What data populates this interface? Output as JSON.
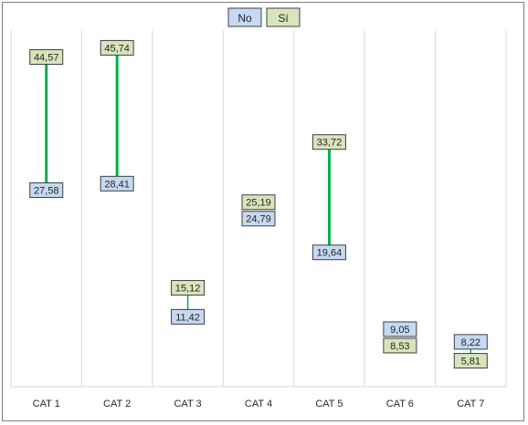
{
  "chart_data": {
    "type": "dumbbell",
    "categories": [
      "CAT 1",
      "CAT 2",
      "CAT 3",
      "CAT 4",
      "CAT 5",
      "CAT 6",
      "CAT 7"
    ],
    "series": [
      {
        "name": "No",
        "values": [
          27.58,
          28.41,
          11.42,
          24.79,
          19.64,
          9.05,
          8.22
        ],
        "labels": [
          "27,58",
          "28,41",
          "11,42",
          "24,79",
          "19,64",
          "9,05",
          "8,22"
        ]
      },
      {
        "name": "Sí",
        "values": [
          44.57,
          45.74,
          15.12,
          25.19,
          33.72,
          8.53,
          5.81
        ],
        "labels": [
          "44,57",
          "45,74",
          "15,12",
          "25,19",
          "33,72",
          "8,53",
          "5,81"
        ]
      }
    ],
    "ylim": [
      2.5,
      48
    ],
    "grid": "vertical",
    "legend_position": "top-center",
    "colors": {
      "no_fill": "#c5d9f1",
      "si_fill": "#d8e4bc",
      "connector": "#00b050",
      "gridline": "#d9d9d9",
      "box_border": "#404040",
      "text": "#262626"
    }
  }
}
